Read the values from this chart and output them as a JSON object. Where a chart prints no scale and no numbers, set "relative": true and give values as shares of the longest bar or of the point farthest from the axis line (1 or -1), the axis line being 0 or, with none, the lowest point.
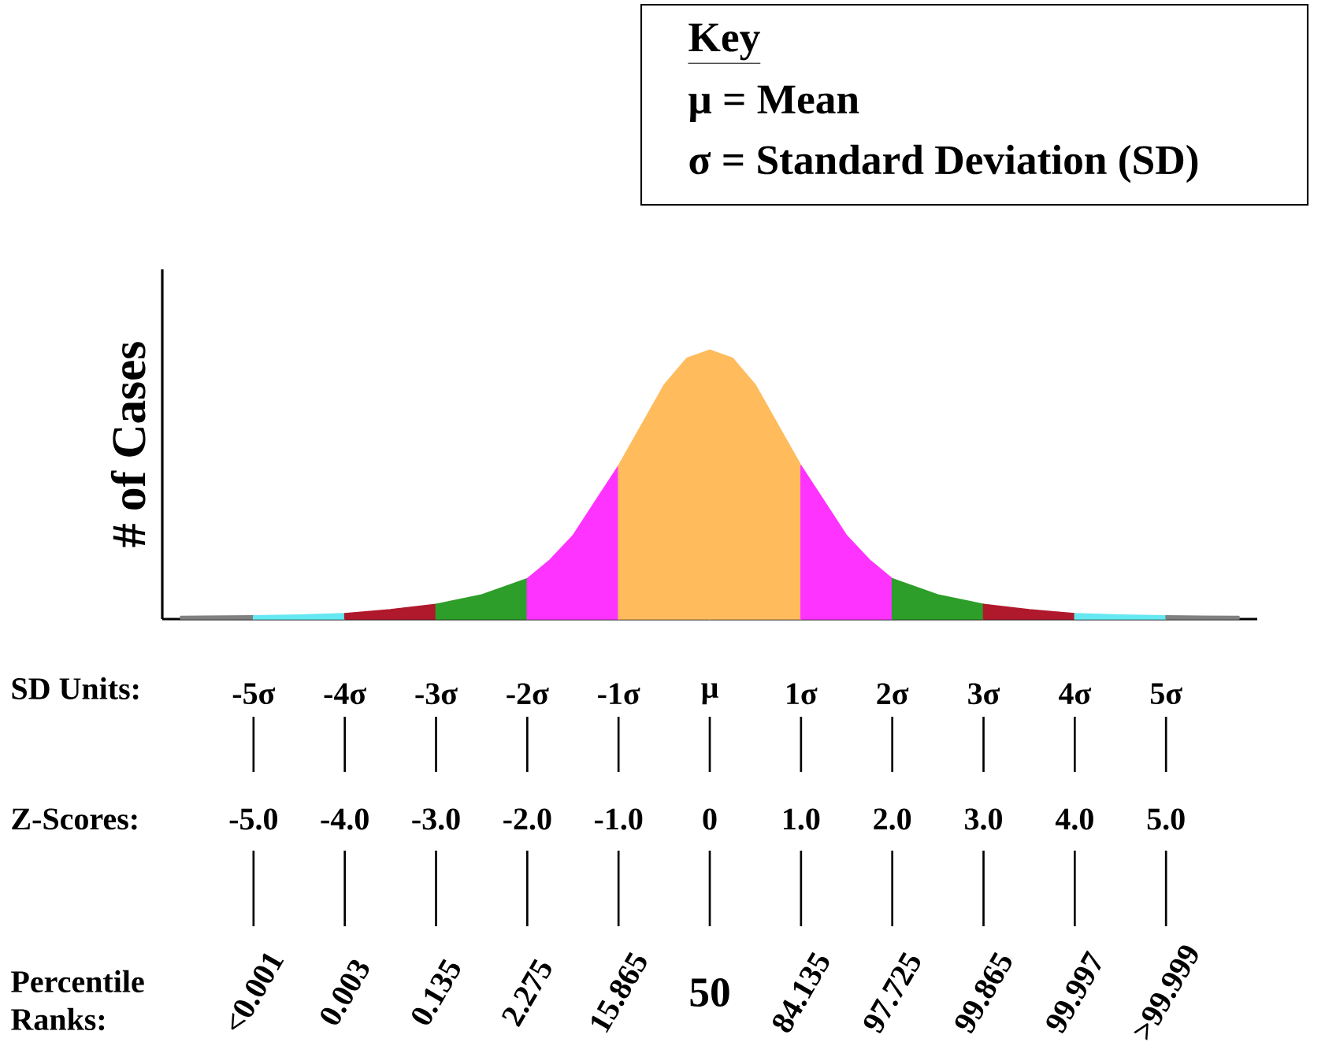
{
  "chart_data": {
    "type": "area",
    "relative": true,
    "ylabel": "# of Cases",
    "xlim": [
      -6,
      6
    ],
    "xticks": [
      {
        "value": -5,
        "label": "-5σ"
      },
      {
        "value": -4,
        "label": "-4σ"
      },
      {
        "value": -3,
        "label": "-3σ"
      },
      {
        "value": -2,
        "label": "-2σ"
      },
      {
        "value": -1,
        "label": "-1σ"
      },
      {
        "value": 0,
        "label": "μ"
      },
      {
        "value": 1,
        "label": "1σ"
      },
      {
        "value": 2,
        "label": "2σ"
      },
      {
        "value": 3,
        "label": "3σ"
      },
      {
        "value": 4,
        "label": "4σ"
      },
      {
        "value": 5,
        "label": "5σ"
      }
    ],
    "series": [
      {
        "color": "#808080",
        "x": [
          -5.8,
          -5
        ],
        "values": [
          0.01,
          0.012
        ]
      },
      {
        "color": "#66e8f2",
        "x": [
          -5,
          -4.5,
          -4
        ],
        "values": [
          0.012,
          0.015,
          0.02
        ]
      },
      {
        "color": "#b0182c",
        "x": [
          -4,
          -3.5,
          -3
        ],
        "values": [
          0.02,
          0.035,
          0.055
        ]
      },
      {
        "color": "#2e9e2a",
        "x": [
          -3,
          -2.5,
          -2
        ],
        "values": [
          0.055,
          0.09,
          0.15
        ]
      },
      {
        "color": "#ff33ff",
        "x": [
          -2,
          -1.75,
          -1.5,
          -1.25,
          -1
        ],
        "values": [
          0.15,
          0.22,
          0.31,
          0.44,
          0.57
        ]
      },
      {
        "color": "#ffbb5c",
        "x": [
          -1,
          -0.75,
          -0.5,
          -0.25,
          0
        ],
        "values": [
          0.57,
          0.72,
          0.87,
          0.97,
          1
        ]
      },
      {
        "color": "#ffbb5c",
        "x": [
          0,
          0.25,
          0.5,
          0.75,
          1
        ],
        "values": [
          1,
          0.97,
          0.87,
          0.72,
          0.57
        ]
      },
      {
        "color": "#ff33ff",
        "x": [
          1,
          1.25,
          1.5,
          1.75,
          2
        ],
        "values": [
          0.57,
          0.44,
          0.31,
          0.22,
          0.15
        ]
      },
      {
        "color": "#2e9e2a",
        "x": [
          2,
          2.5,
          3
        ],
        "values": [
          0.15,
          0.09,
          0.055
        ]
      },
      {
        "color": "#b0182c",
        "x": [
          3,
          3.5,
          4
        ],
        "values": [
          0.055,
          0.035,
          0.02
        ]
      },
      {
        "color": "#66e8f2",
        "x": [
          4,
          4.5,
          5
        ],
        "values": [
          0.02,
          0.015,
          0.012
        ]
      },
      {
        "color": "#808080",
        "x": [
          5,
          5.8
        ],
        "values": [
          0.012,
          0.01
        ]
      }
    ],
    "annotations": [
      "Key",
      "μ = Mean",
      "σ = Standard Deviation (SD)",
      "SD Units:",
      "Z-Scores:",
      "Percentile Ranks:",
      "-5.0",
      "-4.0",
      "-3.0",
      "-2.0",
      "-1.0",
      "0",
      "1.0",
      "2.0",
      "3.0",
      "4.0",
      "5.0",
      "<0.001",
      "0.003",
      "0.135",
      "2.275",
      "15.865",
      "50",
      "84.135",
      "97.725",
      "99.865",
      "99.997",
      ">99.999"
    ]
  }
}
